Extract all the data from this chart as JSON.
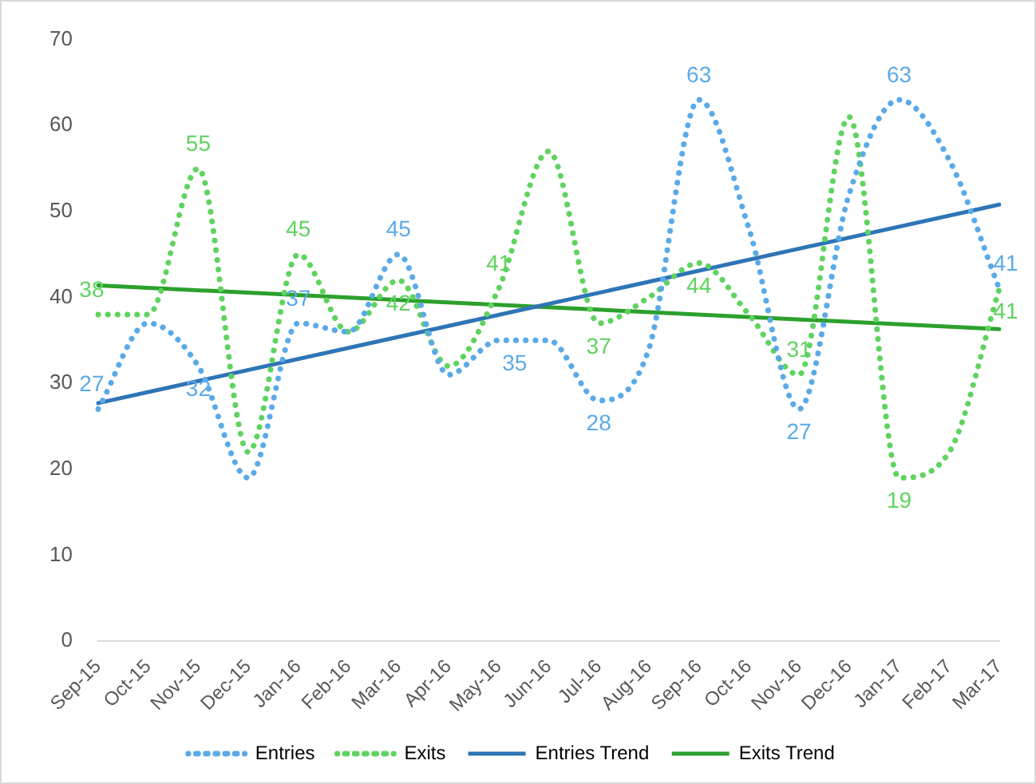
{
  "chart_data": {
    "type": "line",
    "categories": [
      "Sep-15",
      "Oct-15",
      "Nov-15",
      "Dec-15",
      "Jan-16",
      "Feb-16",
      "Mar-16",
      "Apr-16",
      "May-16",
      "Jun-16",
      "Jul-16",
      "Aug-16",
      "Sep-16",
      "Oct-16",
      "Nov-16",
      "Dec-16",
      "Jan-17",
      "Feb-17",
      "Mar-17"
    ],
    "series": [
      {
        "name": "Entries",
        "color": "#5aaae8",
        "line_style": "dotted",
        "values": [
          27,
          37,
          32,
          19,
          37,
          36,
          45,
          31,
          35,
          35,
          28,
          34,
          63,
          48,
          27,
          52,
          63,
          56,
          41
        ],
        "value_labels": [
          "27",
          null,
          "32",
          null,
          "37",
          null,
          "45",
          null,
          "35",
          null,
          "28",
          null,
          "63",
          null,
          "27",
          null,
          "63",
          null,
          "41"
        ]
      },
      {
        "name": "Exits",
        "color": "#5fd35f",
        "line_style": "dotted",
        "values": [
          38,
          38,
          55,
          22,
          45,
          36,
          42,
          32,
          41,
          57,
          37,
          40,
          44,
          38,
          31,
          61,
          19,
          22,
          41
        ],
        "value_labels": [
          "38",
          null,
          "55",
          null,
          "45",
          null,
          "42",
          null,
          "41",
          null,
          "37",
          null,
          "44",
          null,
          "31",
          null,
          "19",
          null,
          "41"
        ]
      },
      {
        "name": "Entries Trend",
        "color": "#2e75b6",
        "line_style": "solid",
        "values": [
          27.7,
          null,
          null,
          null,
          null,
          null,
          null,
          null,
          null,
          null,
          null,
          null,
          null,
          null,
          null,
          null,
          null,
          null,
          50.8
        ]
      },
      {
        "name": "Exits Trend",
        "color": "#2ca02c",
        "line_style": "solid",
        "values": [
          41.4,
          null,
          null,
          null,
          null,
          null,
          null,
          null,
          null,
          null,
          null,
          null,
          null,
          null,
          null,
          null,
          null,
          null,
          36.3
        ]
      }
    ],
    "ylim": [
      0,
      70
    ],
    "yticks": [
      0,
      10,
      20,
      30,
      40,
      50,
      60,
      70
    ],
    "grid": false,
    "legend": "bottom",
    "marker": "none"
  }
}
